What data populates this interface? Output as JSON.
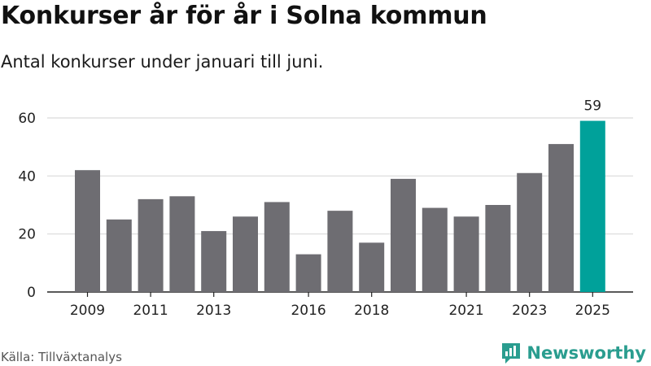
{
  "title": "Konkurser år för år i Solna kommun",
  "subtitle": "Antal konkurser under januari till juni.",
  "source": "Källa: Tillväxtanalys",
  "brand": "Newsworthy",
  "colors": {
    "bar": "#6e6d72",
    "highlight": "#00a19a",
    "grid": "#d9d9d9",
    "axis": "#222222",
    "brand": "#2a9d8f"
  },
  "chart_data": {
    "type": "bar",
    "title": "Konkurser år för år i Solna kommun",
    "subtitle": "Antal konkurser under januari till juni.",
    "xlabel": "",
    "ylabel": "",
    "categories": [
      "2009",
      "2010",
      "2011",
      "2012",
      "2013",
      "2014",
      "2015",
      "2016",
      "2017",
      "2018",
      "2019",
      "2020",
      "2021",
      "2022",
      "2023",
      "2024",
      "2025"
    ],
    "values": [
      42,
      25,
      32,
      33,
      21,
      26,
      31,
      13,
      28,
      17,
      39,
      29,
      26,
      30,
      41,
      51,
      59
    ],
    "x_tick_labels": [
      "2009",
      "2011",
      "2013",
      "2016",
      "2018",
      "2021",
      "2023",
      "2025"
    ],
    "y_ticks": [
      0,
      20,
      40,
      60
    ],
    "ylim": [
      0,
      60
    ],
    "grid": true,
    "highlight_category": "2025",
    "data_labels": [
      {
        "category": "2025",
        "text": "59"
      }
    ]
  }
}
